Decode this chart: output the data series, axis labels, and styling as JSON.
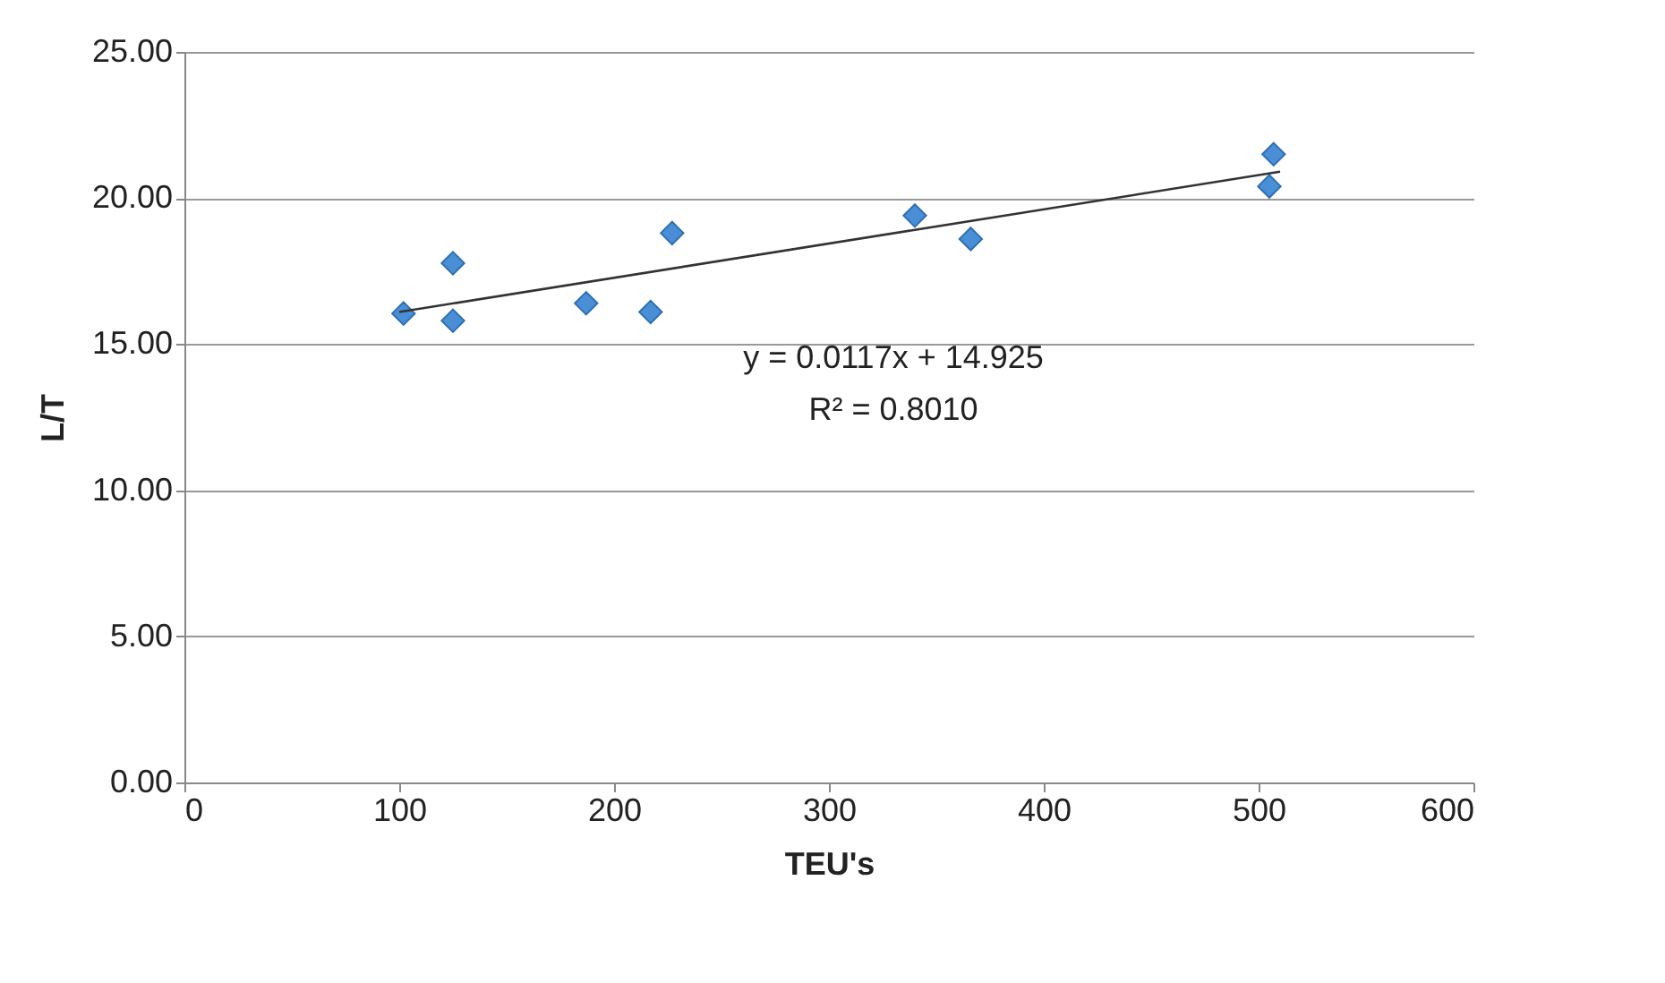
{
  "chart_data": {
    "type": "scatter",
    "xlabel": "TEU's",
    "ylabel": "L/T",
    "series": [
      {
        "color": "#4a8fd6",
        "marker": "diamond",
        "x": [
          102,
          125,
          125,
          187,
          217,
          227,
          340,
          366,
          505,
          507
        ],
        "values": [
          16.05,
          17.77,
          15.8,
          16.4,
          16.1,
          18.8,
          19.4,
          18.6,
          20.4,
          21.5
        ]
      },
      {
        "type": "line",
        "color": "#333333",
        "marker": "none",
        "line_style": "solid",
        "x": [
          100,
          510
        ],
        "values": [
          16.1,
          20.9
        ]
      }
    ],
    "xlim": [
      0,
      600
    ],
    "xticks": [
      0,
      100,
      200,
      300,
      400,
      500,
      600
    ],
    "ylim": [
      0,
      25
    ],
    "yticks": [
      {
        "value": 0,
        "label": "0.00"
      },
      {
        "value": 5,
        "label": "5.00"
      },
      {
        "value": 10,
        "label": "10.00"
      },
      {
        "value": 15,
        "label": "15.00"
      },
      {
        "value": 20,
        "label": "20.00"
      },
      {
        "value": 25,
        "label": "25.00"
      }
    ],
    "grid": "y",
    "annotations": [
      "y = 0.0117x + 14.925",
      "R² = 0.8010"
    ]
  }
}
